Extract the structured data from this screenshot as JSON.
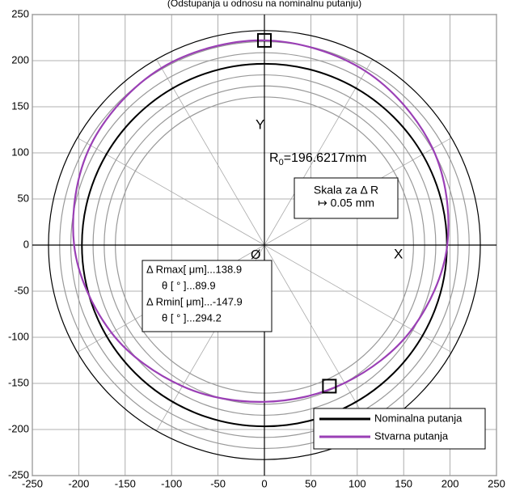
{
  "chart_data": {
    "type": "polar-deviation",
    "title": "(Odstupanja u odnosu na nominalnu putanju)",
    "xlim": [
      -250,
      250
    ],
    "ylim": [
      -250,
      250
    ],
    "xticks": [
      -250,
      -200,
      -150,
      -100,
      -50,
      0,
      50,
      100,
      150,
      200,
      250
    ],
    "yticks": [
      -250,
      -200,
      -150,
      -100,
      -50,
      0,
      50,
      100,
      150,
      200,
      250
    ],
    "grid": true,
    "rings": [
      160.6,
      172.6,
      184.6,
      208.6,
      220.6
    ],
    "ring_color": "#999999",
    "outer_ring": 232.6,
    "radial_step_deg": 30,
    "series": [
      {
        "name": "Nominalna putanja",
        "color": "#000000",
        "radius": 196.6217
      },
      {
        "name": "Stvarna putanja",
        "color": "#9a3fb5",
        "x": [
          197,
          181.3,
          108.9,
          0,
          -110.9,
          -187.2,
          -205,
          -164.7,
          -88.4,
          0,
          86.4,
          158.7,
          197
        ],
        "y": [
          0,
          104.6,
          188.6,
          222,
          192.1,
          108.1,
          0,
          -95.1,
          -153.1,
          -170,
          -149.6,
          -91.6,
          0
        ]
      }
    ],
    "markers": {
      "x": [
        0,
        70
      ],
      "y": [
        222,
        -153
      ]
    },
    "axis_labels": {
      "y": "Y",
      "x": "X",
      "origin": "Ø"
    },
    "radius_label": {
      "main": "R",
      "sub": "0",
      "rest": "=196.6217mm"
    },
    "scale_box": [
      "Skala za Δ R",
      "↦ 0.05 mm"
    ],
    "info_box": [
      "Δ Rmax[ μm]...138.9",
      "θ [ ° ]...89.9",
      "Δ Rmin[ μm]...-147.9",
      "θ [ ° ]...294.2"
    ],
    "legend": "lower right"
  }
}
